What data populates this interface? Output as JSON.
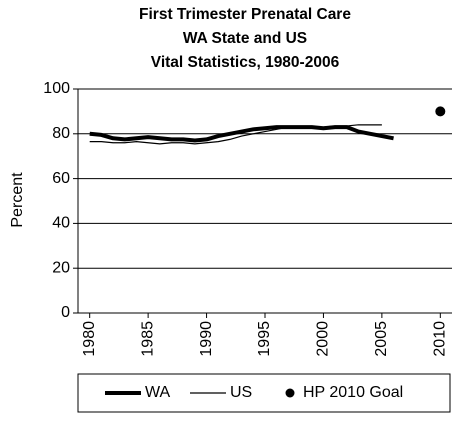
{
  "chart_data": {
    "type": "line",
    "title": [
      "First Trimester Prenatal Care",
      "WA State and US",
      "Vital Statistics, 1980-2006"
    ],
    "y_label": "Percent",
    "xlim": [
      1979,
      2011
    ],
    "xticks": [
      1980,
      1985,
      1990,
      1995,
      2000,
      2005,
      2010
    ],
    "ylim": [
      0,
      100
    ],
    "yticks": [
      0,
      20,
      40,
      60,
      80,
      100
    ],
    "grid": true,
    "series": [
      {
        "name": "WA",
        "color": "#000000",
        "style": "thick",
        "x": [
          1980,
          1981,
          1982,
          1983,
          1984,
          1985,
          1986,
          1987,
          1988,
          1989,
          1990,
          1991,
          1992,
          1993,
          1994,
          1995,
          1996,
          1997,
          1998,
          1999,
          2000,
          2001,
          2002,
          2003,
          2004,
          2005,
          2006
        ],
        "values": [
          80,
          79.5,
          78,
          77.5,
          78,
          78.5,
          78,
          77.5,
          77.5,
          77,
          77.5,
          79,
          80,
          81,
          82,
          82.5,
          83,
          83,
          83,
          83,
          82.5,
          83,
          83,
          81,
          80,
          79,
          78
        ]
      },
      {
        "name": "US",
        "color": "#000000",
        "style": "thin",
        "x": [
          1980,
          1981,
          1982,
          1983,
          1984,
          1985,
          1986,
          1987,
          1988,
          1989,
          1990,
          1991,
          1992,
          1993,
          1994,
          1995,
          1996,
          1997,
          1998,
          1999,
          2000,
          2001,
          2002,
          2003,
          2004,
          2005
        ],
        "values": [
          76.5,
          76.5,
          76,
          76,
          76.5,
          76,
          75.5,
          76,
          76,
          75.5,
          76,
          76.5,
          77.5,
          79,
          80,
          81,
          82,
          83,
          83,
          83,
          83,
          83.5,
          83.5,
          84,
          84,
          84
        ]
      },
      {
        "name": "HP 2010 Goal",
        "color": "#000000",
        "style": "dot",
        "x": [
          2010
        ],
        "values": [
          90
        ]
      }
    ]
  }
}
